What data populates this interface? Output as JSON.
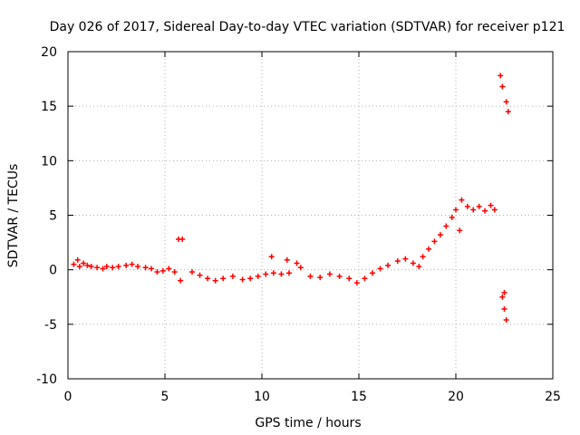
{
  "chart_data": {
    "type": "scatter",
    "title": "Day 026 of 2017, Sidereal Day-to-day VTEC variation (SDTVAR) for receiver p121",
    "xlabel": "GPS time / hours",
    "ylabel": "SDTVAR / TECUs",
    "xlim": [
      0,
      25
    ],
    "ylim": [
      -10,
      20
    ],
    "xticks": [
      0,
      5,
      10,
      15,
      20,
      25
    ],
    "yticks": [
      -10,
      -5,
      0,
      5,
      10,
      15,
      20
    ],
    "xtick_labels": [
      "0",
      "5",
      "10",
      "15",
      "20",
      "25"
    ],
    "ytick_labels": [
      "-10",
      "-5",
      "0",
      "5",
      "10",
      "15",
      "20"
    ],
    "grid": true,
    "marker": "+",
    "series": [
      {
        "name": "SDTVAR",
        "color": "#ff0000",
        "points": [
          [
            0.3,
            0.5
          ],
          [
            0.5,
            0.9
          ],
          [
            0.6,
            0.3
          ],
          [
            0.8,
            0.6
          ],
          [
            1.0,
            0.4
          ],
          [
            1.2,
            0.3
          ],
          [
            1.5,
            0.2
          ],
          [
            1.8,
            0.1
          ],
          [
            2.0,
            0.3
          ],
          [
            2.3,
            0.2
          ],
          [
            2.6,
            0.3
          ],
          [
            3.0,
            0.4
          ],
          [
            3.3,
            0.5
          ],
          [
            3.6,
            0.3
          ],
          [
            4.0,
            0.2
          ],
          [
            4.3,
            0.1
          ],
          [
            4.6,
            -0.2
          ],
          [
            4.9,
            -0.1
          ],
          [
            5.2,
            0.1
          ],
          [
            5.5,
            -0.2
          ],
          [
            5.7,
            2.8
          ],
          [
            5.9,
            2.8
          ],
          [
            5.8,
            -1.0
          ],
          [
            6.4,
            -0.2
          ],
          [
            6.8,
            -0.5
          ],
          [
            7.2,
            -0.8
          ],
          [
            7.6,
            -1.0
          ],
          [
            8.0,
            -0.8
          ],
          [
            8.5,
            -0.6
          ],
          [
            9.0,
            -0.9
          ],
          [
            9.4,
            -0.8
          ],
          [
            9.8,
            -0.6
          ],
          [
            10.2,
            -0.4
          ],
          [
            10.6,
            -0.3
          ],
          [
            11.0,
            -0.4
          ],
          [
            11.4,
            -0.3
          ],
          [
            10.5,
            1.2
          ],
          [
            11.3,
            0.9
          ],
          [
            11.8,
            0.6
          ],
          [
            12.0,
            0.2
          ],
          [
            12.5,
            -0.6
          ],
          [
            13.0,
            -0.7
          ],
          [
            13.5,
            -0.4
          ],
          [
            14.0,
            -0.6
          ],
          [
            14.5,
            -0.8
          ],
          [
            14.9,
            -1.2
          ],
          [
            15.3,
            -0.8
          ],
          [
            15.7,
            -0.3
          ],
          [
            16.1,
            0.1
          ],
          [
            16.5,
            0.4
          ],
          [
            17.0,
            0.8
          ],
          [
            17.4,
            1.0
          ],
          [
            17.8,
            0.6
          ],
          [
            18.1,
            0.3
          ],
          [
            18.3,
            1.2
          ],
          [
            18.6,
            1.9
          ],
          [
            18.9,
            2.6
          ],
          [
            19.2,
            3.2
          ],
          [
            19.5,
            4.0
          ],
          [
            19.8,
            4.8
          ],
          [
            20.0,
            5.5
          ],
          [
            20.2,
            3.6
          ],
          [
            20.3,
            6.4
          ],
          [
            20.6,
            5.8
          ],
          [
            20.9,
            5.5
          ],
          [
            21.2,
            5.8
          ],
          [
            21.5,
            5.4
          ],
          [
            21.8,
            5.9
          ],
          [
            22.0,
            5.5
          ],
          [
            22.3,
            17.8
          ],
          [
            22.4,
            16.8
          ],
          [
            22.6,
            15.4
          ],
          [
            22.7,
            14.5
          ],
          [
            22.4,
            -2.5
          ],
          [
            22.5,
            -3.6
          ],
          [
            22.6,
            -4.6
          ],
          [
            22.5,
            -2.1
          ]
        ]
      }
    ]
  }
}
